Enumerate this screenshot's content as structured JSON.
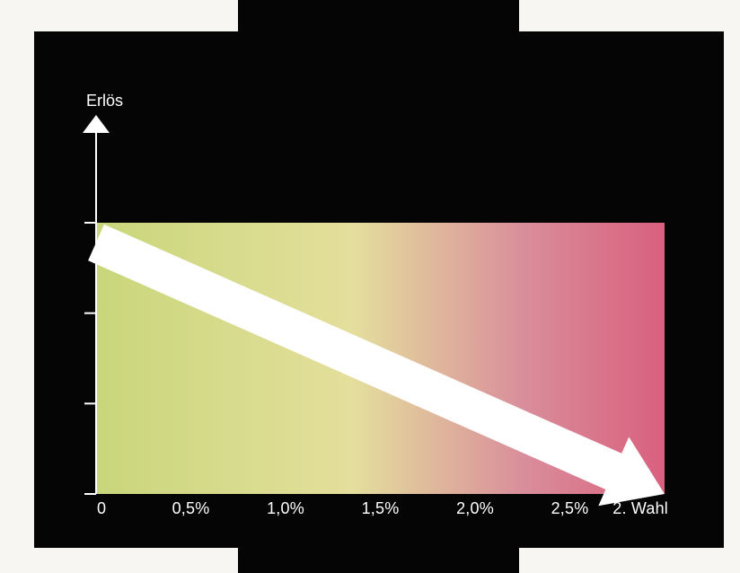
{
  "chart_data": {
    "type": "line",
    "ylabel": "Erlös",
    "x_tick_labels": [
      "0",
      "0,5%",
      "1,0%",
      "1,5%",
      "2,0%",
      "2,5%",
      "2. Wahl"
    ],
    "x_ticks": [
      0,
      0.5,
      1.0,
      1.5,
      2.0,
      2.5,
      3.0
    ],
    "xlim": [
      0,
      3.0
    ],
    "ylim": [
      0,
      3
    ],
    "y_ticks": [
      0,
      1,
      2,
      3
    ],
    "series": [
      {
        "x": [
          0,
          3.0
        ],
        "y": [
          3,
          0
        ]
      }
    ],
    "background_gradient": [
      "#c9d67a",
      "#e4df9c",
      "#d98e9b",
      "#d9607e"
    ],
    "arrow_color": "#ffffff",
    "frame_color": "#050505"
  }
}
